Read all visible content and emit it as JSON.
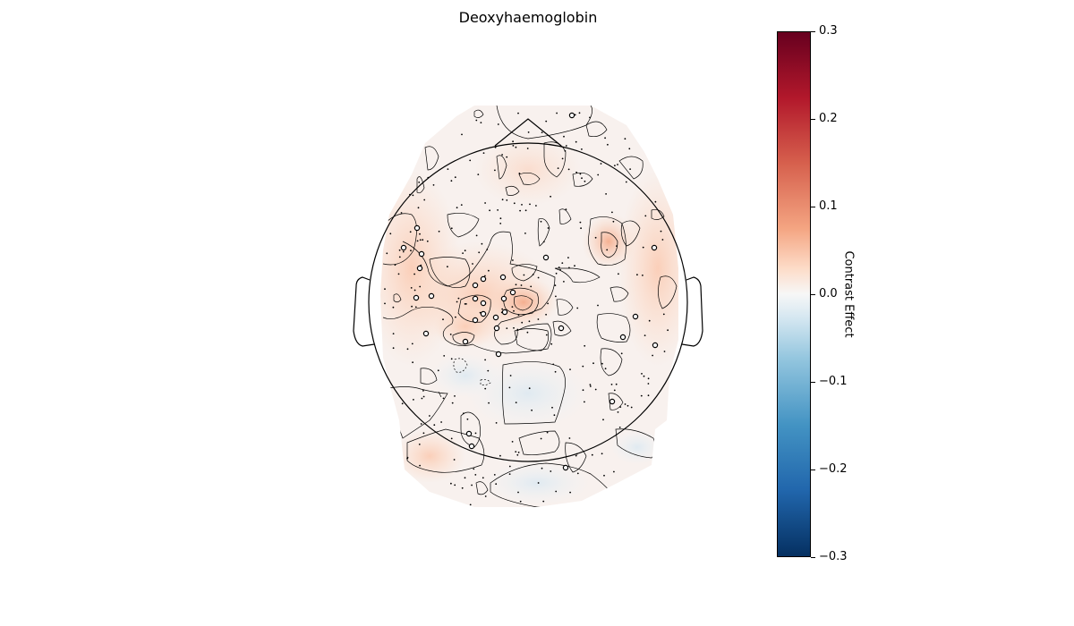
{
  "title": "Deoxyhaemoglobin",
  "chart_data": {
    "type": "heatmap",
    "subtype": "topographic-map",
    "title": "Deoxyhaemoglobin",
    "colormap": "RdBu_r",
    "colorbar": {
      "label": "Contrast Effect",
      "vmin": -0.3,
      "vmax": 0.3,
      "ticks": [
        0.3,
        0.2,
        0.1,
        0.0,
        -0.1,
        -0.2,
        -0.3
      ],
      "tick_labels": [
        "0.3",
        "0.2",
        "0.1",
        "0.0",
        "−0.1",
        "−0.2",
        "−0.3"
      ]
    },
    "sensor_marker": "small dots; highlighted channels drawn as open circles",
    "highlighted_channel_count": 35
  }
}
